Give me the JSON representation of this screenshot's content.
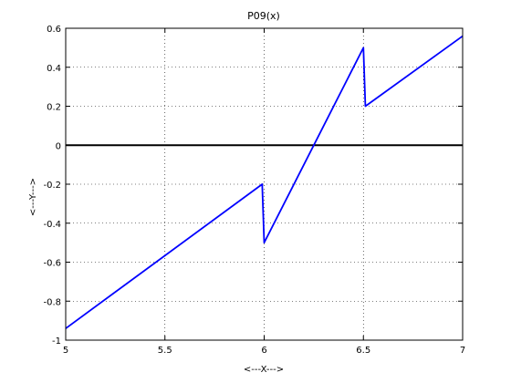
{
  "chart_data": {
    "type": "line",
    "title": "P09(x)",
    "xlabel": "<---X--->",
    "ylabel": "<---Y--->",
    "xlim": [
      5,
      7
    ],
    "ylim": [
      -1,
      0.6
    ],
    "grid": true,
    "x_ticks": [
      "5",
      "5.5",
      "6",
      "6.5",
      "7"
    ],
    "y_ticks": [
      "-1",
      "-0.8",
      "-0.6",
      "-0.4",
      "-0.2",
      "0",
      "0.2",
      "0.4",
      "0.6"
    ],
    "series": [
      {
        "color": "#0000ff",
        "x": [
          5.0,
          5.99,
          6.0,
          6.5,
          6.51,
          7.0
        ],
        "y": [
          -0.94,
          -0.2,
          -0.5,
          0.5,
          0.2,
          0.56
        ]
      }
    ],
    "zero_line": {
      "y": 0,
      "color": "#000000"
    }
  }
}
